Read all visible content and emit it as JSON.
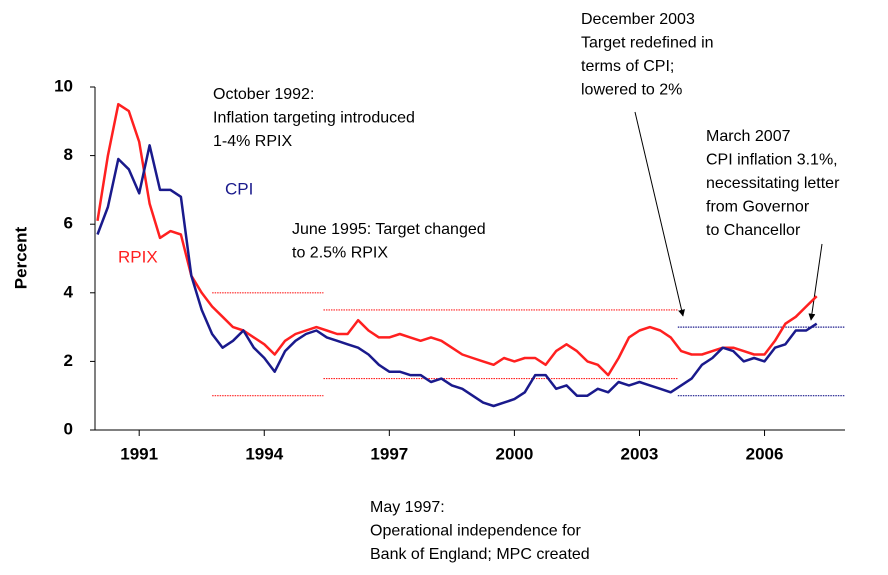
{
  "chart_data": {
    "type": "line",
    "y_label": "Percent",
    "x": [
      1990,
      1990.25,
      1990.5,
      1990.75,
      1991,
      1991.25,
      1991.5,
      1991.75,
      1992,
      1992.25,
      1992.5,
      1992.75,
      1993,
      1993.25,
      1993.5,
      1993.75,
      1994,
      1994.25,
      1994.5,
      1994.75,
      1995,
      1995.25,
      1995.5,
      1995.75,
      1996,
      1996.25,
      1996.5,
      1996.75,
      1997,
      1997.25,
      1997.5,
      1997.75,
      1998,
      1998.25,
      1998.5,
      1998.75,
      1999,
      1999.25,
      1999.5,
      1999.75,
      2000,
      2000.25,
      2000.5,
      2000.75,
      2001,
      2001.25,
      2001.5,
      2001.75,
      2002,
      2002.25,
      2002.5,
      2002.75,
      2003,
      2003.25,
      2003.5,
      2003.75,
      2004,
      2004.25,
      2004.5,
      2004.75,
      2005,
      2005.25,
      2005.5,
      2005.75,
      2006,
      2006.25,
      2006.5,
      2006.75,
      2007,
      2007.25
    ],
    "series": [
      {
        "name": "RPIX",
        "color": "#ff2020",
        "values": [
          6.1,
          8.0,
          9.5,
          9.3,
          8.4,
          6.6,
          5.6,
          5.8,
          5.7,
          4.5,
          4.0,
          3.6,
          3.3,
          3.0,
          2.9,
          2.7,
          2.5,
          2.2,
          2.6,
          2.8,
          2.9,
          3.0,
          2.9,
          2.8,
          2.8,
          3.2,
          2.9,
          2.7,
          2.7,
          2.8,
          2.7,
          2.6,
          2.7,
          2.6,
          2.4,
          2.2,
          2.1,
          2.0,
          1.9,
          2.1,
          2.0,
          2.1,
          2.1,
          1.9,
          2.3,
          2.5,
          2.3,
          2.0,
          1.9,
          1.6,
          2.1,
          2.7,
          2.9,
          3.0,
          2.9,
          2.7,
          2.3,
          2.2,
          2.2,
          2.3,
          2.4,
          2.4,
          2.3,
          2.2,
          2.2,
          2.6,
          3.1,
          3.3,
          3.6,
          3.9
        ]
      },
      {
        "name": "CPI",
        "color": "#1a1a8c",
        "values": [
          5.7,
          6.5,
          7.9,
          7.6,
          6.9,
          8.3,
          7.0,
          7.0,
          6.8,
          4.5,
          3.5,
          2.8,
          2.4,
          2.6,
          2.9,
          2.4,
          2.1,
          1.7,
          2.3,
          2.6,
          2.8,
          2.9,
          2.7,
          2.6,
          2.5,
          2.4,
          2.2,
          1.9,
          1.7,
          1.7,
          1.6,
          1.6,
          1.4,
          1.5,
          1.3,
          1.2,
          1.0,
          0.8,
          0.7,
          0.8,
          0.9,
          1.1,
          1.6,
          1.6,
          1.2,
          1.3,
          1.0,
          1.0,
          1.2,
          1.1,
          1.4,
          1.3,
          1.4,
          1.3,
          1.2,
          1.1,
          1.3,
          1.5,
          1.9,
          2.1,
          2.4,
          2.3,
          2.0,
          2.1,
          2.0,
          2.4,
          2.5,
          2.9,
          2.9,
          3.1
        ]
      }
    ],
    "targets": [
      {
        "from": 1992.75,
        "to": 1995.42,
        "upper": 4,
        "lower": 1,
        "color": "#ff2020"
      },
      {
        "from": 1995.42,
        "to": 2003.92,
        "upper": 3.5,
        "lower": 1.5,
        "color": "#ff2020"
      },
      {
        "from": 2003.92,
        "to": 2008,
        "upper": 3,
        "lower": 1,
        "color": "#1a1a8c"
      }
    ],
    "xlim": [
      1989.94,
      2007.93
    ],
    "xticks": [
      1991,
      1994,
      1997,
      2000,
      2003,
      2006
    ],
    "ylim": [
      0,
      10
    ],
    "yticks": [
      0,
      2,
      4,
      6,
      8,
      10
    ],
    "annotations": [
      {
        "lines": [
          "October 1992:",
          "Inflation targeting introduced",
          "1-4% RPIX"
        ]
      },
      {
        "lines": [
          "June 1995: Target changed",
          "to 2.5% RPIX"
        ]
      },
      {
        "lines": [
          "December 2003",
          "Target redefined in",
          "terms of CPI;",
          "lowered to 2%"
        ]
      },
      {
        "lines": [
          "March 2007",
          "CPI inflation 3.1%,",
          "necessitating letter",
          "from Governor",
          "to Chancellor"
        ]
      },
      {
        "lines": [
          "May 1997:",
          "Operational independence for",
          "Bank of England; MPC created"
        ]
      }
    ]
  }
}
